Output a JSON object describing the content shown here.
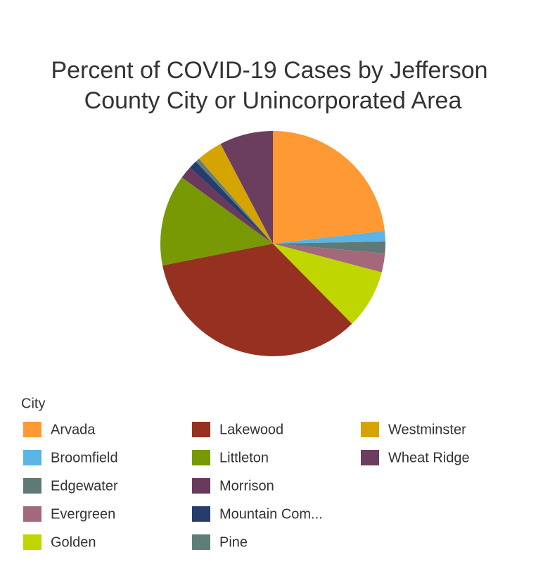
{
  "chart_data": {
    "type": "pie",
    "title": [
      "Percent of COVID-19 Cases by Jefferson",
      "County City or Unincorporated Area"
    ],
    "legend_title": "City",
    "categories": [
      "Arvada",
      "Broomfield",
      "Edgewater",
      "Evergreen",
      "Golden",
      "Lakewood",
      "Littleton",
      "Morrison",
      "Mountain Com...",
      "Pine",
      "Westminster",
      "Wheat Ridge"
    ],
    "values": [
      23.2,
      1.5,
      1.7,
      2.7,
      8.5,
      34.3,
      13.1,
      1.8,
      1.2,
      0.6,
      3.7,
      7.7
    ],
    "colors": [
      "#ff9933",
      "#5ab4e5",
      "#5f7a76",
      "#a3697a",
      "#bfd600",
      "#963122",
      "#789904",
      "#6a3a5e",
      "#263d6b",
      "#5f7e7a",
      "#d6a400",
      "#6b3d5e"
    ]
  }
}
